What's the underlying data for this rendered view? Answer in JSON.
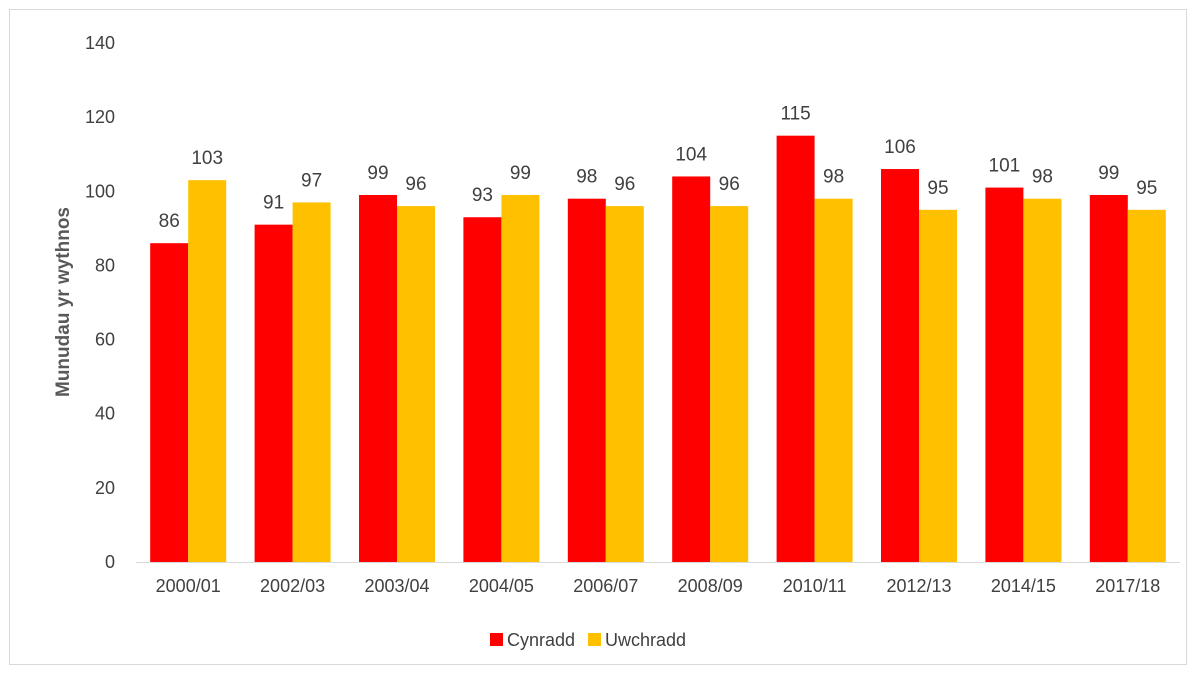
{
  "chart_data": {
    "type": "bar",
    "ylabel": "Munudau yr wythnos",
    "xlabel": "",
    "ylim": [
      0,
      140
    ],
    "yticks": [
      0,
      20,
      40,
      60,
      80,
      100,
      120,
      140
    ],
    "grid": false,
    "legend_position": "bottom",
    "categories": [
      "2000/01",
      "2002/03",
      "2003/04",
      "2004/05",
      "2006/07",
      "2008/09",
      "2010/11",
      "2012/13",
      "2014/15",
      "2017/18"
    ],
    "series": [
      {
        "name": "Cynradd",
        "color": "#ff0000",
        "values": [
          86,
          91,
          99,
          93,
          98,
          104,
          115,
          106,
          101,
          99
        ]
      },
      {
        "name": "Uwchradd",
        "color": "#ffc000",
        "values": [
          103,
          97,
          96,
          99,
          96,
          96,
          98,
          95,
          98,
          95
        ]
      }
    ]
  }
}
